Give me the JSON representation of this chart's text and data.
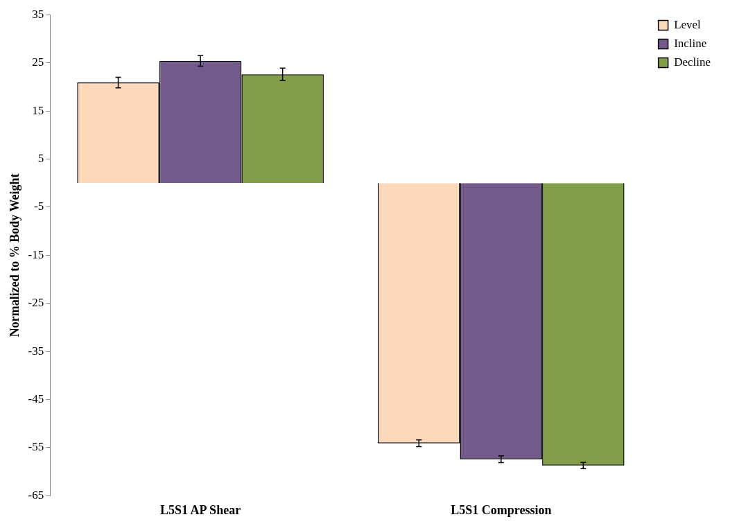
{
  "chart_data": {
    "type": "bar",
    "ylabel": "Normalized to % Body Weight",
    "categories": [
      "L5S1 AP Shear",
      "L5S1 Compression"
    ],
    "series": [
      {
        "name": "Level",
        "color": "#fcd9bb",
        "values": [
          20.9,
          -54.1
        ],
        "errors": [
          1.1,
          0.7
        ]
      },
      {
        "name": "Incline",
        "color": "#725a8a",
        "values": [
          25.4,
          -57.4
        ],
        "errors": [
          1.1,
          0.7
        ]
      },
      {
        "name": "Decline",
        "color": "#839e4b",
        "values": [
          22.6,
          -58.7
        ],
        "errors": [
          1.3,
          0.65
        ]
      }
    ],
    "ylim": [
      -65,
      35
    ],
    "yticks": [
      35,
      25,
      15,
      5,
      -5,
      -15,
      -25,
      -35,
      -45,
      -55,
      -65
    ],
    "grid": false,
    "legend": "top right"
  }
}
